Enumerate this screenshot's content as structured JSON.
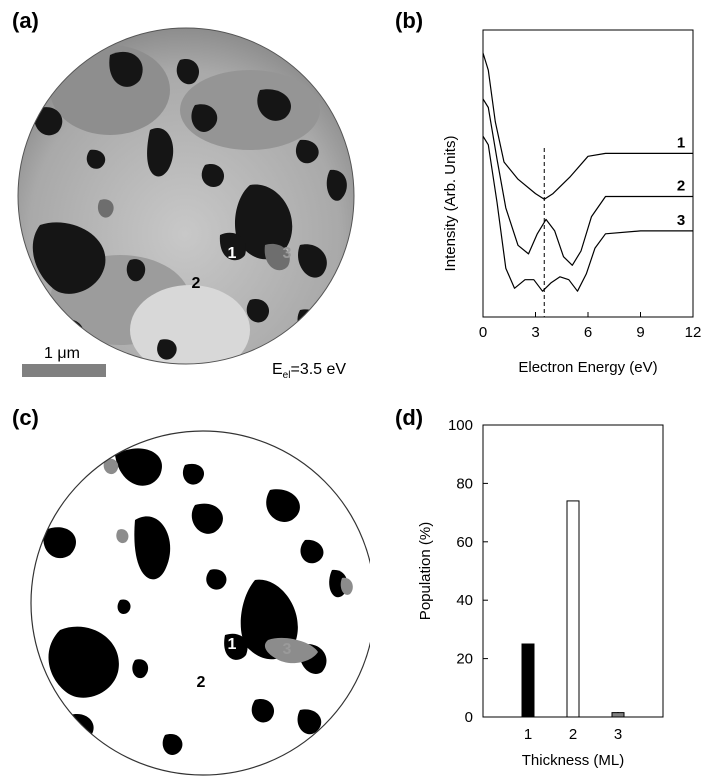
{
  "panels": {
    "a": {
      "label": "(a)",
      "scale_bar_label": "1 μm",
      "energy_main": "E",
      "energy_sub": "el",
      "energy_rest": "=3.5 eV",
      "region_labels": [
        "1",
        "2",
        "3"
      ],
      "colors": {
        "dark": "#151515",
        "mid": "#8a8a8a",
        "light": "#b8b8b8",
        "label3": "#9a9a9a"
      }
    },
    "b": {
      "label": "(b)"
    },
    "c": {
      "label": "(c)",
      "region_labels": [
        "1",
        "2",
        "3"
      ],
      "colors": {
        "black": "#000000",
        "gray": "#8c8c8c",
        "white": "#ffffff"
      }
    },
    "d": {
      "label": "(d)"
    }
  },
  "chart_data": [
    {
      "type": "line",
      "panel": "b",
      "title": "",
      "xlabel": "Electron Energy (eV)",
      "ylabel": "Intensity (Arb. Units)",
      "xlim": [
        0,
        12
      ],
      "xticks": [
        0,
        3,
        6,
        9,
        12
      ],
      "y_ticks_shown": false,
      "reference_line": {
        "x": 3.5,
        "style": "dashed"
      },
      "series": [
        {
          "name": "1",
          "x": [
            0,
            0.3,
            0.7,
            1.2,
            2.0,
            3.0,
            3.5,
            4.0,
            5.0,
            6.0,
            7.0,
            9.0,
            12.0
          ],
          "y": [
            0.92,
            0.86,
            0.68,
            0.54,
            0.48,
            0.43,
            0.41,
            0.43,
            0.49,
            0.56,
            0.57,
            0.57,
            0.57
          ]
        },
        {
          "name": "2",
          "x": [
            0,
            0.3,
            0.8,
            1.3,
            2.0,
            2.6,
            3.1,
            3.6,
            4.1,
            4.6,
            5.1,
            5.6,
            6.2,
            7.0,
            9.0,
            12.0
          ],
          "y": [
            0.76,
            0.73,
            0.55,
            0.38,
            0.25,
            0.22,
            0.29,
            0.34,
            0.3,
            0.21,
            0.18,
            0.23,
            0.35,
            0.42,
            0.42,
            0.42
          ]
        },
        {
          "name": "3",
          "x": [
            0,
            0.3,
            0.8,
            1.3,
            1.8,
            2.4,
            2.9,
            3.4,
            3.9,
            4.4,
            4.9,
            5.4,
            5.9,
            6.4,
            7.0,
            9.0,
            12.0
          ],
          "y": [
            0.63,
            0.6,
            0.4,
            0.17,
            0.1,
            0.13,
            0.13,
            0.09,
            0.12,
            0.14,
            0.13,
            0.09,
            0.15,
            0.24,
            0.29,
            0.3,
            0.3
          ]
        }
      ]
    },
    {
      "type": "bar",
      "panel": "d",
      "title": "",
      "xlabel": "Thickness (ML)",
      "ylabel": "Population (%)",
      "categories": [
        "1",
        "2",
        "3"
      ],
      "values": [
        25,
        74,
        1.5
      ],
      "bar_colors": [
        "#000000",
        "#ffffff",
        "#808080"
      ],
      "ylim": [
        0,
        100
      ],
      "yticks": [
        0,
        20,
        40,
        60,
        80,
        100
      ]
    }
  ]
}
